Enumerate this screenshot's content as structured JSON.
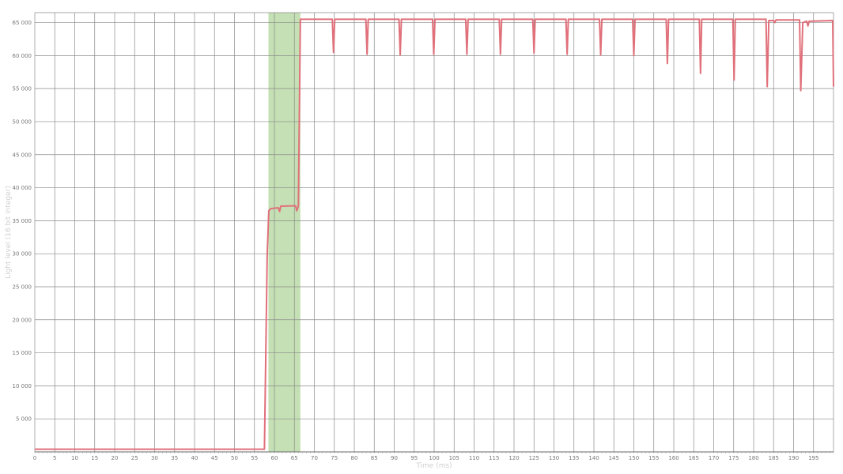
{
  "chart_data": {
    "type": "line",
    "title": "",
    "xlabel": "Time (ms)",
    "ylabel": "Light level (16 bit integer)",
    "xlim": [
      0,
      200
    ],
    "ylim": [
      0,
      66500
    ],
    "x_ticks": [
      0,
      5,
      10,
      15,
      20,
      25,
      30,
      35,
      40,
      45,
      50,
      55,
      60,
      65,
      70,
      75,
      80,
      85,
      90,
      95,
      100,
      105,
      110,
      115,
      120,
      125,
      130,
      135,
      140,
      145,
      150,
      155,
      160,
      165,
      170,
      175,
      180,
      185,
      190,
      195
    ],
    "x_tick_labels": [
      "0",
      "5",
      "10",
      "15",
      "20",
      "25",
      "30",
      "35",
      "40",
      "45",
      "50",
      "55",
      "60",
      "65",
      "70",
      "75",
      "80",
      "85",
      "90",
      "95",
      "100",
      "105",
      "110",
      "115",
      "120",
      "125",
      "130",
      "135",
      "140",
      "145",
      "150",
      "155",
      "160",
      "165",
      "170",
      "175",
      "180",
      "185",
      "190",
      "195"
    ],
    "y_ticks": [
      5000,
      10000,
      15000,
      20000,
      25000,
      30000,
      35000,
      40000,
      45000,
      50000,
      55000,
      60000,
      65000
    ],
    "y_tick_labels": [
      "5 000",
      "10 000",
      "15 000",
      "20 000",
      "25 000",
      "30 000",
      "35 000",
      "40 000",
      "45 000",
      "50 000",
      "55 000",
      "60 000",
      "65 000"
    ],
    "grid": true,
    "highlight_band": {
      "x_start": 58.5,
      "x_end": 66.5,
      "color": "#c5e0b4"
    },
    "series": [
      {
        "color": "#e0707a",
        "x": [
          0,
          57.5,
          58.2,
          58.6,
          59.0,
          60.0,
          61.0,
          61.3,
          61.6,
          65.3,
          65.6,
          66.0,
          66.5,
          66.8,
          74.5,
          74.8,
          75.1,
          82.9,
          83.2,
          83.5,
          91.2,
          91.5,
          91.8,
          99.6,
          99.9,
          100.2,
          107.9,
          108.2,
          108.5,
          116.3,
          116.6,
          116.9,
          124.7,
          125.0,
          125.3,
          133.0,
          133.3,
          133.6,
          141.4,
          141.7,
          142.0,
          149.7,
          150.0,
          150.3,
          158.1,
          158.4,
          158.7,
          166.4,
          166.7,
          167.0,
          174.8,
          175.1,
          175.4,
          183.1,
          183.4,
          183.8,
          185.0,
          185.3,
          185.6,
          191.5,
          191.8,
          192.3,
          193.3,
          193.6,
          193.9,
          199.8,
          200
        ],
        "y": [
          400,
          400,
          30000,
          36500,
          36800,
          36900,
          36950,
          36400,
          37200,
          37250,
          36500,
          37250,
          65500,
          65500,
          65500,
          60500,
          65500,
          65500,
          60200,
          65500,
          65500,
          60100,
          65500,
          65500,
          60200,
          65500,
          65500,
          60200,
          65500,
          65500,
          60200,
          65500,
          65500,
          60400,
          65500,
          65500,
          60200,
          65500,
          65500,
          60100,
          65500,
          65500,
          60000,
          65500,
          65500,
          58800,
          65500,
          65500,
          57300,
          65500,
          65500,
          56300,
          65500,
          65500,
          55300,
          65300,
          65300,
          65000,
          65400,
          65400,
          54700,
          65000,
          65200,
          64500,
          65200,
          65300,
          55300
        ]
      }
    ]
  }
}
